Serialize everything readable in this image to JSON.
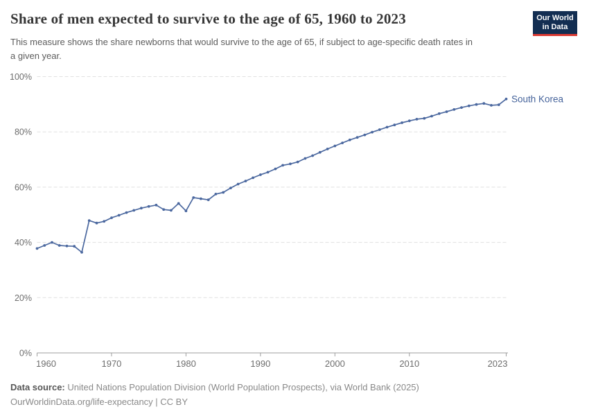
{
  "header": {
    "title": "Share of men expected to survive to the age of 65, 1960 to 2023",
    "subtitle": "This measure shows the share newborns that would survive to the age of 65, if subject to age-specific death rates in a given year."
  },
  "logo": {
    "line1": "Our World",
    "line2": "in Data",
    "bg_color": "#132e52",
    "stripe_color": "#dc3a32"
  },
  "footer": {
    "source_label": "Data source:",
    "source_text": "United Nations Population Division (World Population Prospects), via World Bank (2025)",
    "note": "OurWorldinData.org/life-expectancy | CC BY"
  },
  "chart_data": {
    "type": "line",
    "title": "Share of men expected to survive to the age of 65, 1960 to 2023",
    "xlabel": "",
    "ylabel": "",
    "xlim": [
      1960,
      2023
    ],
    "ylim": [
      0,
      100
    ],
    "x_ticks": [
      1960,
      1970,
      1980,
      1990,
      2000,
      2010,
      2023
    ],
    "y_ticks": [
      0,
      20,
      40,
      60,
      80,
      100
    ],
    "y_tick_suffix": "%",
    "grid": "horizontal-dashed",
    "legend_position": "end-of-line-label",
    "entity_label": "South Korea",
    "line_color": "#4b689f",
    "entity_label_color": "#44629a",
    "grid_color": "#e0e0e0",
    "axis_color": "#9d9d9d",
    "tick_label_color": "#6d6d6d",
    "series": [
      {
        "name": "South Korea",
        "x": [
          1960,
          1961,
          1962,
          1963,
          1964,
          1965,
          1966,
          1967,
          1968,
          1969,
          1970,
          1971,
          1972,
          1973,
          1974,
          1975,
          1976,
          1977,
          1978,
          1979,
          1980,
          1981,
          1982,
          1983,
          1984,
          1985,
          1986,
          1987,
          1988,
          1989,
          1990,
          1991,
          1992,
          1993,
          1994,
          1995,
          1996,
          1997,
          1998,
          1999,
          2000,
          2001,
          2002,
          2003,
          2004,
          2005,
          2006,
          2007,
          2008,
          2009,
          2010,
          2011,
          2012,
          2013,
          2014,
          2015,
          2016,
          2017,
          2018,
          2019,
          2020,
          2021,
          2022,
          2023
        ],
        "values": [
          37.8,
          38.9,
          40.0,
          38.9,
          38.7,
          38.6,
          36.4,
          47.9,
          47.0,
          47.6,
          48.9,
          49.8,
          50.8,
          51.6,
          52.4,
          53.0,
          53.5,
          51.9,
          51.6,
          54.1,
          51.4,
          56.2,
          55.8,
          55.4,
          57.5,
          58.1,
          59.7,
          61.1,
          62.2,
          63.4,
          64.5,
          65.4,
          66.6,
          67.9,
          68.4,
          69.1,
          70.4,
          71.4,
          72.6,
          73.8,
          74.9,
          76.0,
          77.1,
          78.0,
          78.9,
          79.9,
          80.8,
          81.7,
          82.5,
          83.3,
          84.0,
          84.6,
          84.9,
          85.7,
          86.6,
          87.3,
          88.1,
          88.8,
          89.4,
          89.9,
          90.3,
          89.6,
          89.8,
          91.9
        ]
      }
    ]
  }
}
